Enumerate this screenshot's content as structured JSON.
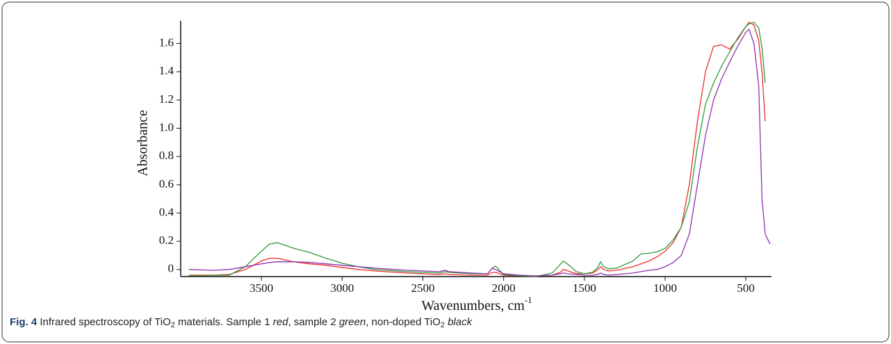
{
  "chart_data": {
    "type": "line",
    "x_label": {
      "text": "Wavenumbers, cm",
      "superscript": "-1"
    },
    "y_label": "Absorbance",
    "caption": [
      "Fig. 4",
      " Infrared spectroscopy of TiO",
      "2",
      " materials. Sample 1 ",
      "red",
      ", sample 2 ",
      "green",
      ", non-doped TiO",
      "2",
      " ",
      "black"
    ],
    "xlim": [
      4000,
      350
    ],
    "ylim": [
      -0.05,
      1.76
    ],
    "xticks": [
      3500,
      3000,
      2500,
      2000,
      1500,
      1000,
      500
    ],
    "yticks": [
      0,
      0.2,
      0.4,
      0.6,
      0.8,
      {
        "value": 1,
        "label": "1.0"
      },
      1.2,
      1.4,
      1.6
    ],
    "x": [
      3950,
      3800,
      3700,
      3600,
      3500,
      3450,
      3400,
      3300,
      3200,
      3100,
      3000,
      2900,
      2800,
      2600,
      2400,
      2360,
      2340,
      2200,
      2100,
      2070,
      2050,
      2000,
      1900,
      1800,
      1700,
      1650,
      1630,
      1600,
      1550,
      1500,
      1450,
      1420,
      1400,
      1380,
      1350,
      1300,
      1200,
      1150,
      1100,
      1050,
      1000,
      950,
      900,
      850,
      800,
      750,
      700,
      650,
      600,
      550,
      500,
      480,
      450,
      420,
      400,
      380,
      350
    ],
    "series": [
      {
        "color": "#ee2a2a",
        "values": [
          -0.04,
          -0.04,
          -0.035,
          0.0,
          0.06,
          0.08,
          0.08,
          0.055,
          0.04,
          0.03,
          0.015,
          0.0,
          -0.01,
          -0.025,
          -0.035,
          -0.03,
          -0.035,
          -0.04,
          -0.04,
          -0.02,
          -0.02,
          -0.04,
          -0.045,
          -0.045,
          -0.04,
          -0.02,
          0.0,
          -0.01,
          -0.03,
          -0.03,
          -0.025,
          -0.005,
          0.02,
          0.0,
          -0.01,
          -0.005,
          0.02,
          0.04,
          0.06,
          0.09,
          0.13,
          0.19,
          0.3,
          0.6,
          1.05,
          1.4,
          1.58,
          1.59,
          1.56,
          1.63,
          1.72,
          1.75,
          1.73,
          1.62,
          1.4,
          1.05,
          null
        ]
      },
      {
        "color": "#2e9a3a",
        "values": [
          -0.045,
          -0.042,
          -0.04,
          0.02,
          0.13,
          0.18,
          0.19,
          0.15,
          0.12,
          0.08,
          0.045,
          0.02,
          0.0,
          -0.015,
          -0.025,
          -0.015,
          -0.02,
          -0.03,
          -0.03,
          0.01,
          0.025,
          -0.035,
          -0.045,
          -0.05,
          -0.025,
          0.035,
          0.06,
          0.035,
          -0.015,
          -0.03,
          -0.02,
          0.01,
          0.055,
          0.02,
          0.005,
          0.01,
          0.06,
          0.11,
          0.115,
          0.125,
          0.15,
          0.21,
          0.3,
          0.48,
          0.87,
          1.17,
          1.32,
          1.44,
          1.54,
          1.64,
          1.72,
          1.74,
          1.75,
          1.71,
          1.57,
          1.32,
          null
        ]
      },
      {
        "color": "#8e2fb0",
        "values": [
          0.0,
          -0.005,
          0.0,
          0.02,
          0.04,
          0.05,
          0.055,
          0.055,
          0.05,
          0.04,
          0.03,
          0.02,
          0.01,
          -0.005,
          -0.015,
          -0.005,
          -0.015,
          -0.025,
          -0.03,
          0.01,
          0.0,
          -0.03,
          -0.04,
          -0.045,
          -0.04,
          -0.03,
          -0.025,
          -0.03,
          -0.035,
          -0.04,
          -0.04,
          -0.035,
          -0.025,
          -0.035,
          -0.04,
          -0.035,
          -0.025,
          -0.015,
          -0.005,
          0.0,
          0.02,
          0.05,
          0.1,
          0.25,
          0.6,
          0.95,
          1.2,
          1.35,
          1.47,
          1.58,
          1.68,
          1.7,
          1.6,
          1.3,
          0.5,
          0.25,
          0.18
        ]
      }
    ]
  }
}
